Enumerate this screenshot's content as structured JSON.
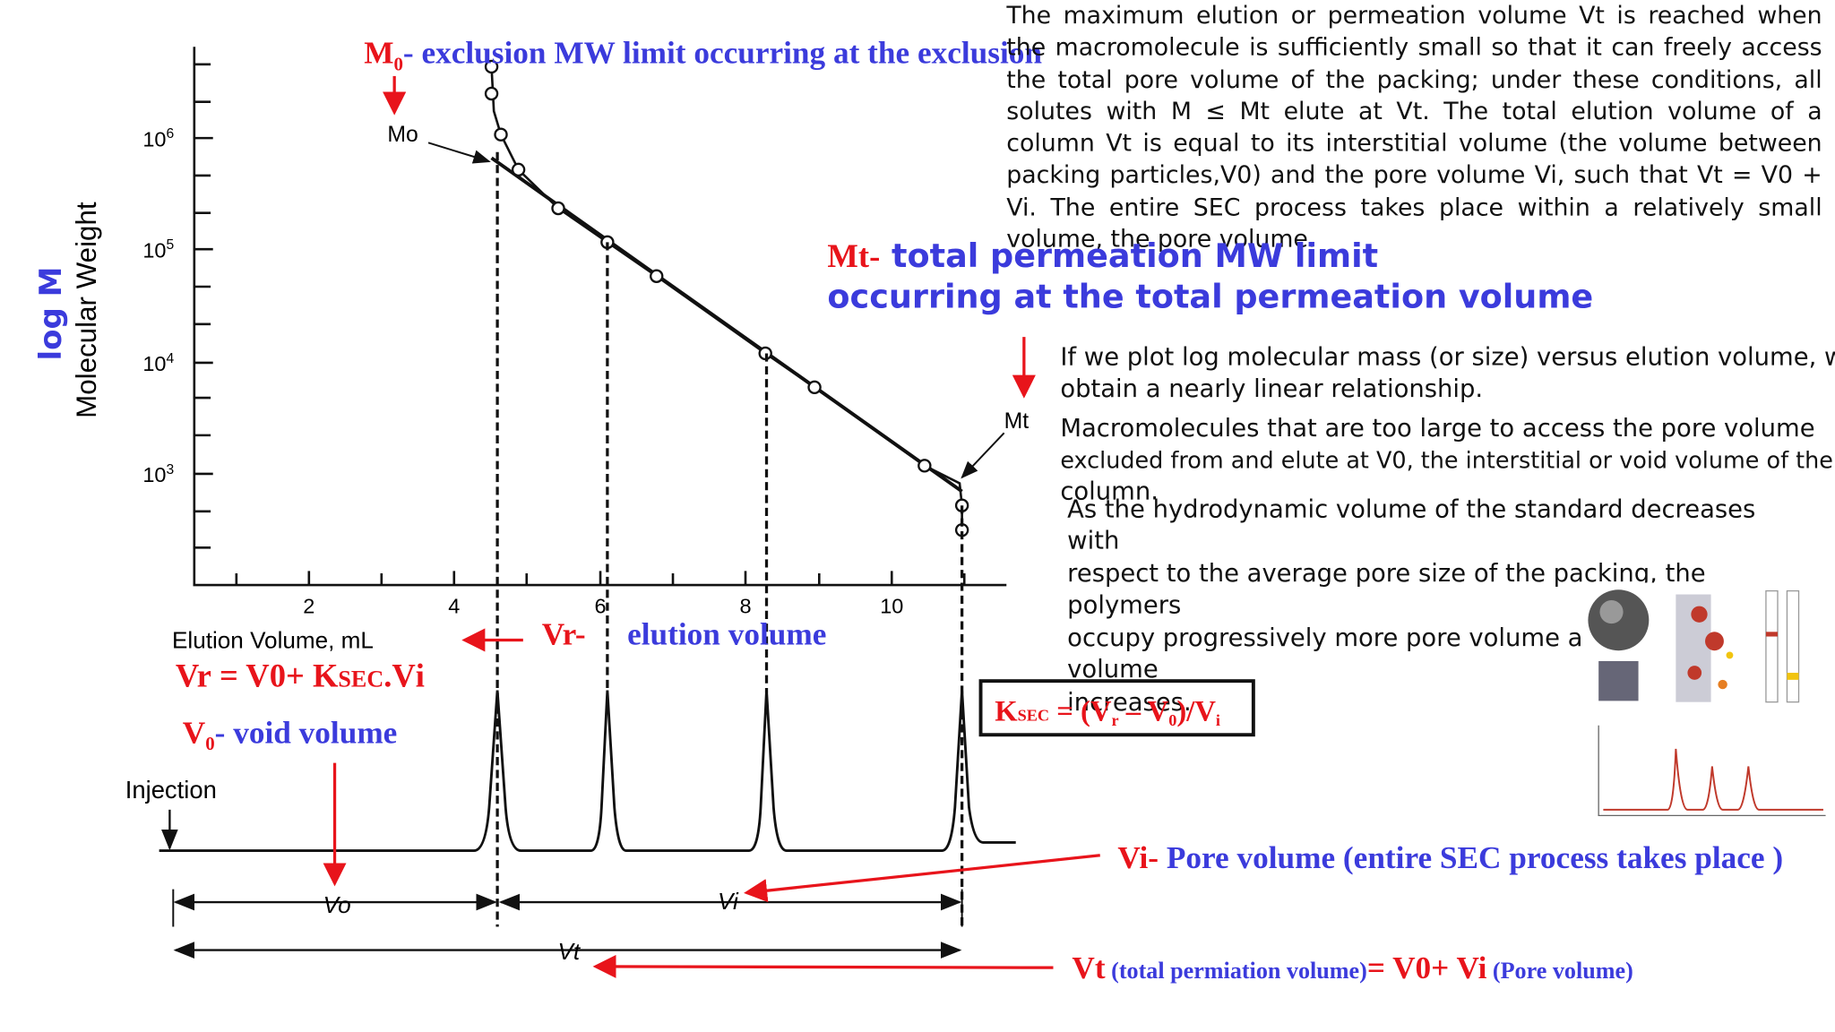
{
  "top_label": {
    "m": "M",
    "sub": "0",
    "text": "- exclusion MW limit occurring at the exclusion"
  },
  "top_paragraph": "The maximum elution or permeation volume Vt is reached when the macromolecule is sufficiently small so that it can freely access the total pore volume of the packing; under these conditions, all solutes with M ≤ Mt elute at Vt. The total elution volume of a column Vt is equal to its interstitial volume (the volume between packing particles,V0) and the pore volume Vi, such that Vt = V0 + Vi. The entire SEC process takes place within a relatively small volume, the pore volume.",
  "mt_label": {
    "prefix": "Mt-",
    "line1": " total permeation MW limit",
    "line2": "occurring at  the total permeation volume"
  },
  "linear_text": [
    "If we plot log molecular mass (or size) versus elution volume, w",
    "obtain a nearly linear relationship."
  ],
  "excluded_text": [
    "Macromolecules that are too large to access the pore volume",
    "excluded from and elute at V0, the interstitial or void volume of the",
    "column."
  ],
  "hydro_text": [
    "As the hydrodynamic volume of the standard decreases",
    "with",
    "respect to the average pore size of the packing, the",
    "polymers",
    "occupy progressively more pore volume a",
    "volume",
    "increases."
  ],
  "figure": {
    "y_title": "log M",
    "y_axis_label": "Molecular Weight",
    "y_ticks": [
      {
        "base": "10",
        "exp": "6"
      },
      {
        "base": "10",
        "exp": "5"
      },
      {
        "base": "10",
        "exp": "4"
      },
      {
        "base": "10",
        "exp": "3"
      }
    ],
    "x_ticks": [
      "2",
      "4",
      "6",
      "8",
      "10"
    ],
    "x_axis_label": "Elution Volume, mL",
    "mo": "Mo",
    "mt": "Mt",
    "injection": "Injection",
    "vo": "Vo",
    "vi": "Vi",
    "vt": "Vt"
  },
  "vr_label": {
    "prefix": "Vr-",
    "text": "elution volume"
  },
  "vr_equation": {
    "a": "Vr",
    "b": " = V",
    "c": "0",
    "d": "+ K",
    "e": "SEC",
    "f": ".V",
    "g": "i"
  },
  "v0_label": {
    "v": "V",
    "sub": "0",
    "text": "- void volume"
  },
  "ksec_equation": {
    "k": "K",
    "sec": "SEC",
    "rest1": " = (V",
    "r": "r",
    "rest2": " – V",
    "zero": "0",
    "rest3": ")/V",
    "i": "i"
  },
  "vi_label": {
    "prefix": "Vi-",
    "text": " Pore volume (entire SEC process takes place )"
  },
  "vt_label": {
    "v": "Vt",
    "t1": " (total permiation volume)",
    "t2": "= V0+ Vi",
    "t3": "  (Pore volume)"
  }
}
